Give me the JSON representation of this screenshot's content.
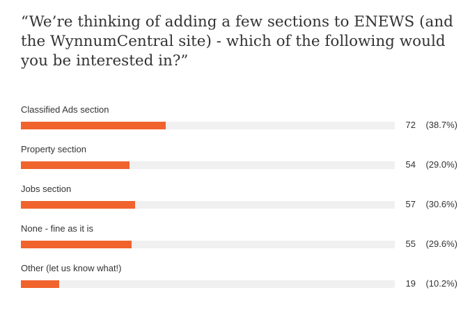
{
  "question": "“We’re thinking of adding a few sections to ENEWS (and the WynnumCentral site) - which of the following would you be interested in?”",
  "colors": {
    "bar_fill": "#f0632d",
    "bar_track": "#f0f0f0",
    "text": "#333333"
  },
  "chart_data": {
    "type": "bar",
    "orientation": "horizontal",
    "title": "“We’re thinking of adding a few sections to ENEWS (and the WynnumCentral site) - which of the following would you be interested in?”",
    "categories": [
      "Classified Ads section",
      "Property section",
      "Jobs section",
      "None - fine as it is",
      "Other (let us know what!)"
    ],
    "values": [
      72,
      54,
      57,
      55,
      19
    ],
    "percent_labels": [
      "(38.7%)",
      "(29.0%)",
      "(30.6%)",
      "(29.6%)",
      "(10.2%)"
    ],
    "percents": [
      38.7,
      29.0,
      30.6,
      29.6,
      10.2
    ],
    "xlim": [
      0,
      100
    ],
    "grid": false,
    "legend": "none"
  }
}
